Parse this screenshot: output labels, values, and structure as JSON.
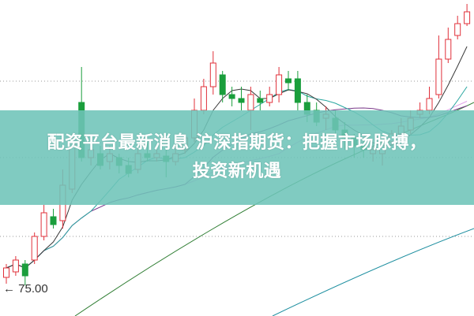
{
  "headline": {
    "line1": "配资平台最新消息 沪深指期货：把握市场脉搏，",
    "line2": "投资新机遇"
  },
  "chart_data": {
    "type": "candlestick",
    "title": "",
    "xlabel": "",
    "ylabel": "",
    "ylim": [
      71.1,
      111.2
    ],
    "grid": "dotted horizontal",
    "low_marker": "75.00",
    "colors": {
      "up": "#e0303a",
      "down": "#1a9e3c",
      "ma5": "#3a3a3a",
      "ma10": "#2aa7a0",
      "ma20": "#7a3a8a",
      "ma30": "#e0a0e8",
      "ma_long1": "#2e7d32",
      "ma_long2": "#1e8fa0",
      "banner": "#6ec4b8"
    },
    "candles": [
      [
        76.0,
        77.2,
        77.7,
        75.2
      ],
      [
        76.7,
        78.2,
        78.7,
        76.2
      ],
      [
        77.7,
        76.2,
        78.2,
        75.0
      ],
      [
        78.2,
        81.2,
        81.7,
        77.7
      ],
      [
        81.2,
        84.2,
        85.2,
        80.7
      ],
      [
        83.7,
        82.7,
        84.7,
        82.2
      ],
      [
        83.2,
        87.7,
        89.7,
        82.2
      ],
      [
        87.2,
        93.2,
        94.2,
        86.7
      ],
      [
        98.2,
        91.2,
        102.7,
        90.7
      ],
      [
        91.2,
        92.2,
        93.7,
        90.2
      ],
      [
        91.7,
        90.2,
        92.7,
        89.7
      ],
      [
        90.7,
        91.7,
        92.7,
        89.7
      ],
      [
        91.2,
        90.2,
        91.7,
        89.2
      ],
      [
        90.2,
        89.2,
        91.2,
        88.7
      ],
      [
        89.7,
        91.7,
        92.7,
        89.2
      ],
      [
        91.7,
        91.2,
        93.2,
        90.7
      ],
      [
        91.2,
        91.7,
        92.7,
        90.7
      ],
      [
        91.4,
        90.7,
        92.2,
        88.7
      ],
      [
        90.7,
        91.7,
        92.7,
        90.2
      ],
      [
        92.2,
        93.7,
        94.2,
        91.7
      ],
      [
        93.7,
        97.2,
        98.7,
        93.2
      ],
      [
        97.2,
        100.2,
        101.2,
        96.7
      ],
      [
        100.2,
        103.2,
        104.7,
        99.2
      ],
      [
        101.7,
        99.2,
        102.2,
        98.2
      ],
      [
        99.2,
        98.7,
        100.2,
        97.7
      ],
      [
        98.7,
        98.2,
        100.2,
        97.2
      ],
      [
        97.2,
        99.2,
        100.2,
        94.7
      ],
      [
        98.7,
        98.2,
        99.7,
        97.2
      ],
      [
        98.2,
        99.2,
        100.2,
        97.7
      ],
      [
        99.2,
        101.7,
        102.7,
        98.2
      ],
      [
        101.2,
        100.7,
        102.2,
        99.7
      ],
      [
        101.2,
        98.2,
        102.2,
        97.2
      ],
      [
        98.2,
        96.7,
        99.2,
        95.7
      ],
      [
        97.2,
        95.7,
        98.2,
        95.2
      ],
      [
        96.2,
        96.7,
        97.7,
        94.7
      ],
      [
        96.2,
        94.7,
        97.2,
        93.7
      ],
      [
        94.7,
        93.7,
        95.7,
        92.2
      ],
      [
        93.7,
        92.7,
        94.2,
        91.2
      ],
      [
        92.7,
        92.2,
        93.7,
        91.2
      ],
      [
        91.7,
        92.2,
        92.7,
        90.7
      ],
      [
        91.7,
        92.7,
        93.2,
        90.2
      ],
      [
        93.2,
        94.2,
        94.7,
        92.7
      ],
      [
        94.2,
        95.2,
        96.2,
        93.7
      ],
      [
        94.7,
        96.2,
        97.2,
        94.2
      ],
      [
        96.7,
        97.2,
        98.2,
        96.2
      ],
      [
        97.2,
        98.7,
        100.2,
        96.7
      ],
      [
        99.2,
        103.7,
        106.7,
        98.7
      ],
      [
        103.7,
        106.2,
        107.7,
        103.2
      ],
      [
        106.7,
        108.2,
        109.2,
        106.2
      ],
      [
        108.2,
        109.7,
        110.7,
        107.9
      ]
    ],
    "candle_fields": [
      "open",
      "close",
      "high",
      "low"
    ]
  }
}
